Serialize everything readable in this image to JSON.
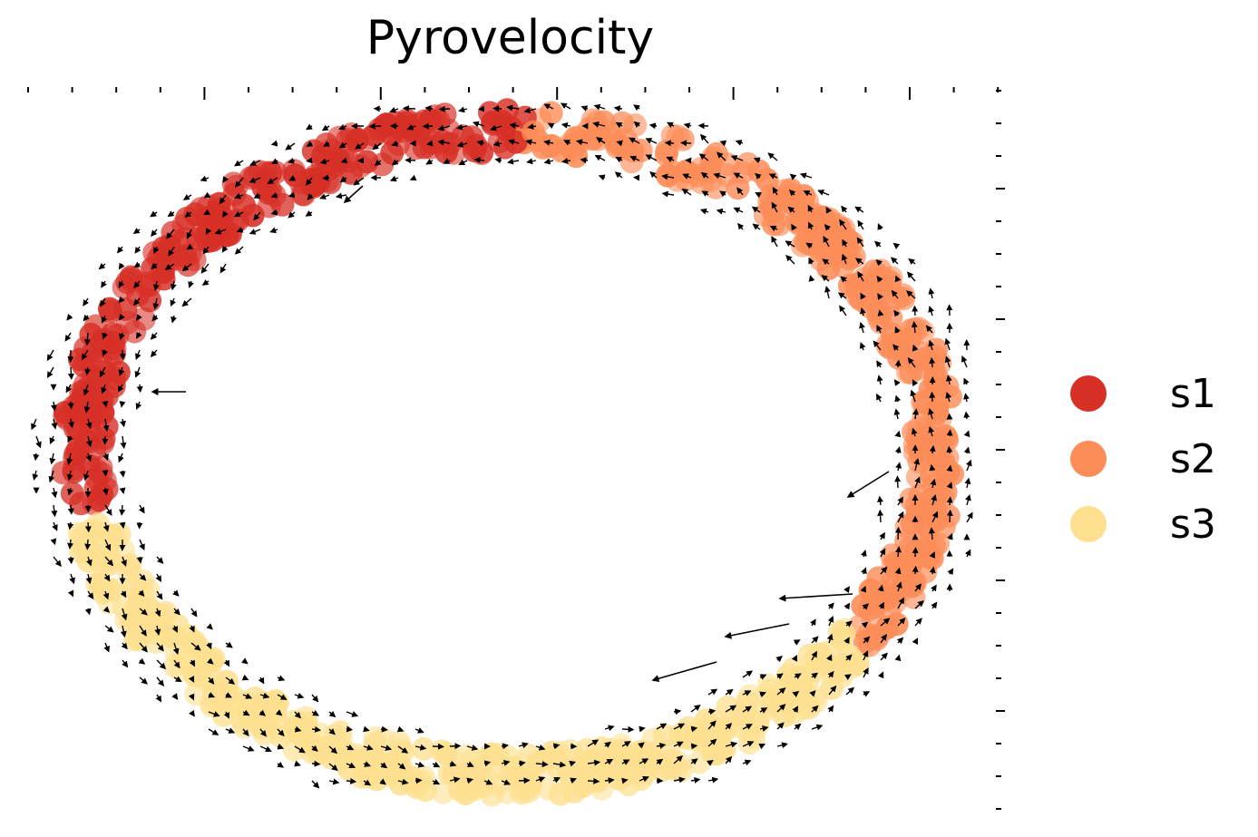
{
  "chart_data": {
    "type": "scatter",
    "title": "Pyrovelocity",
    "xlabel": "",
    "ylabel": "",
    "grid": false,
    "legend_position": "right",
    "xlim": [
      -1.4,
      1.4
    ],
    "ylim": [
      -1.3,
      1.3
    ],
    "shape": "ring of cells with velocity arrows (quiver)",
    "series": [
      {
        "name": "s1",
        "color": "#d73027",
        "arc_deg": [
          88,
          190
        ]
      },
      {
        "name": "s2",
        "color": "#fc8d59",
        "arc_deg": [
          -35,
          88
        ]
      },
      {
        "name": "s3",
        "color": "#fee090",
        "arc_deg": [
          190,
          325
        ]
      }
    ],
    "arrow_color": "#000000"
  }
}
